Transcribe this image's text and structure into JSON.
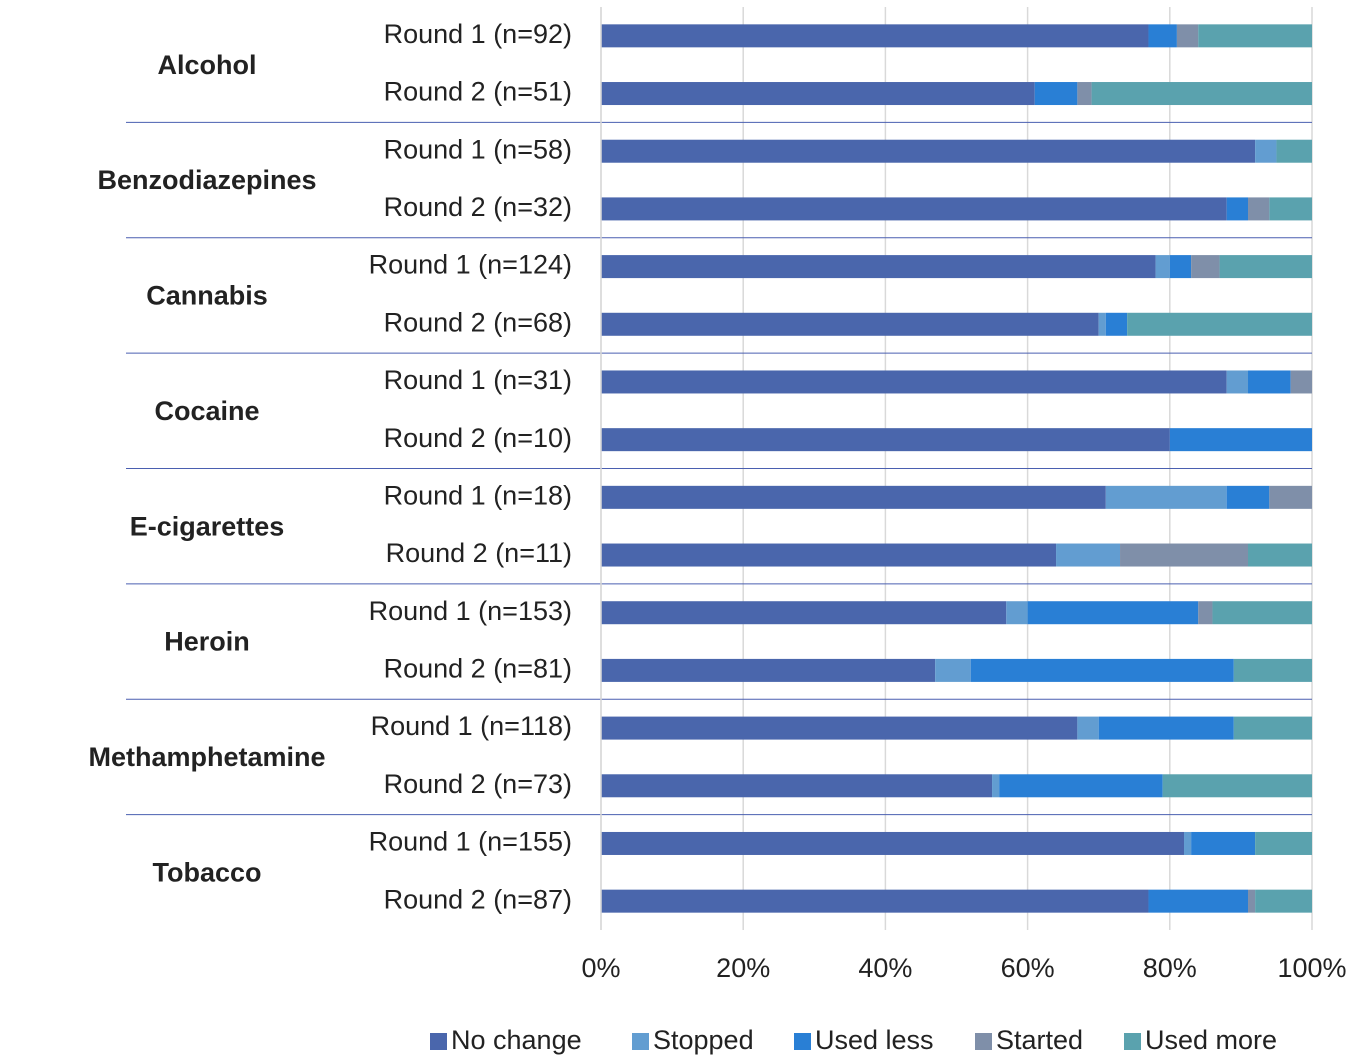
{
  "chart_data": {
    "type": "stacked_bar_horizontal",
    "categories": [
      "Round 1 (n=92)",
      "Round 2 (n=51)",
      "Round 1 (n=58)",
      "Round 2 (n=32)",
      "Round 1 (n=124)",
      "Round 2 (n=68)",
      "Round 1 (n=31)",
      "Round 2 (n=10)",
      "Round 1 (n=18)",
      "Round 2 (n=11)",
      "Round 1 (n=153)",
      "Round 2 (n=81)",
      "Round 1 (n=118)",
      "Round 2 (n=73)",
      "Round 1 (n=155)",
      "Round 2 (n=87)"
    ],
    "groups": [
      "Alcohol",
      "Benzodiazepines",
      "Cannabis",
      "Cocaine",
      "E-cigarettes",
      "Heroin",
      "Methamphetamine",
      "Tobacco"
    ],
    "series": [
      {
        "name": "No change",
        "color": "#4a66ac",
        "values": [
          77,
          61,
          92,
          88,
          78,
          70,
          88,
          80,
          71,
          64,
          57,
          47,
          67,
          55,
          82,
          77
        ]
      },
      {
        "name": "Stopped",
        "color": "#629dd1",
        "values": [
          0,
          0,
          3,
          0,
          2,
          1,
          3,
          0,
          17,
          9,
          3,
          5,
          3,
          1,
          1,
          0
        ]
      },
      {
        "name": "Used less",
        "color": "#297fd5",
        "values": [
          4,
          6,
          0,
          3,
          3,
          3,
          6,
          20,
          6,
          0,
          24,
          37,
          19,
          23,
          9,
          14
        ]
      },
      {
        "name": "Started",
        "color": "#7f8fa9",
        "values": [
          3,
          2,
          0,
          3,
          4,
          0,
          3,
          0,
          6,
          18,
          2,
          0,
          0,
          0,
          0,
          1
        ]
      },
      {
        "name": "Used more",
        "color": "#5aa2ae",
        "values": [
          16,
          31,
          5,
          6,
          13,
          26,
          0,
          0,
          0,
          9,
          14,
          11,
          11,
          21,
          8,
          8
        ]
      }
    ],
    "xlim": [
      0,
      100
    ],
    "xticks": [
      {
        "value": 0,
        "label": "0%"
      },
      {
        "value": 20,
        "label": "20%"
      },
      {
        "value": 40,
        "label": "40%"
      },
      {
        "value": 60,
        "label": "60%"
      },
      {
        "value": 80,
        "label": "80%"
      },
      {
        "value": 100,
        "label": "100%"
      }
    ],
    "grid": true,
    "legend": "bottom"
  }
}
